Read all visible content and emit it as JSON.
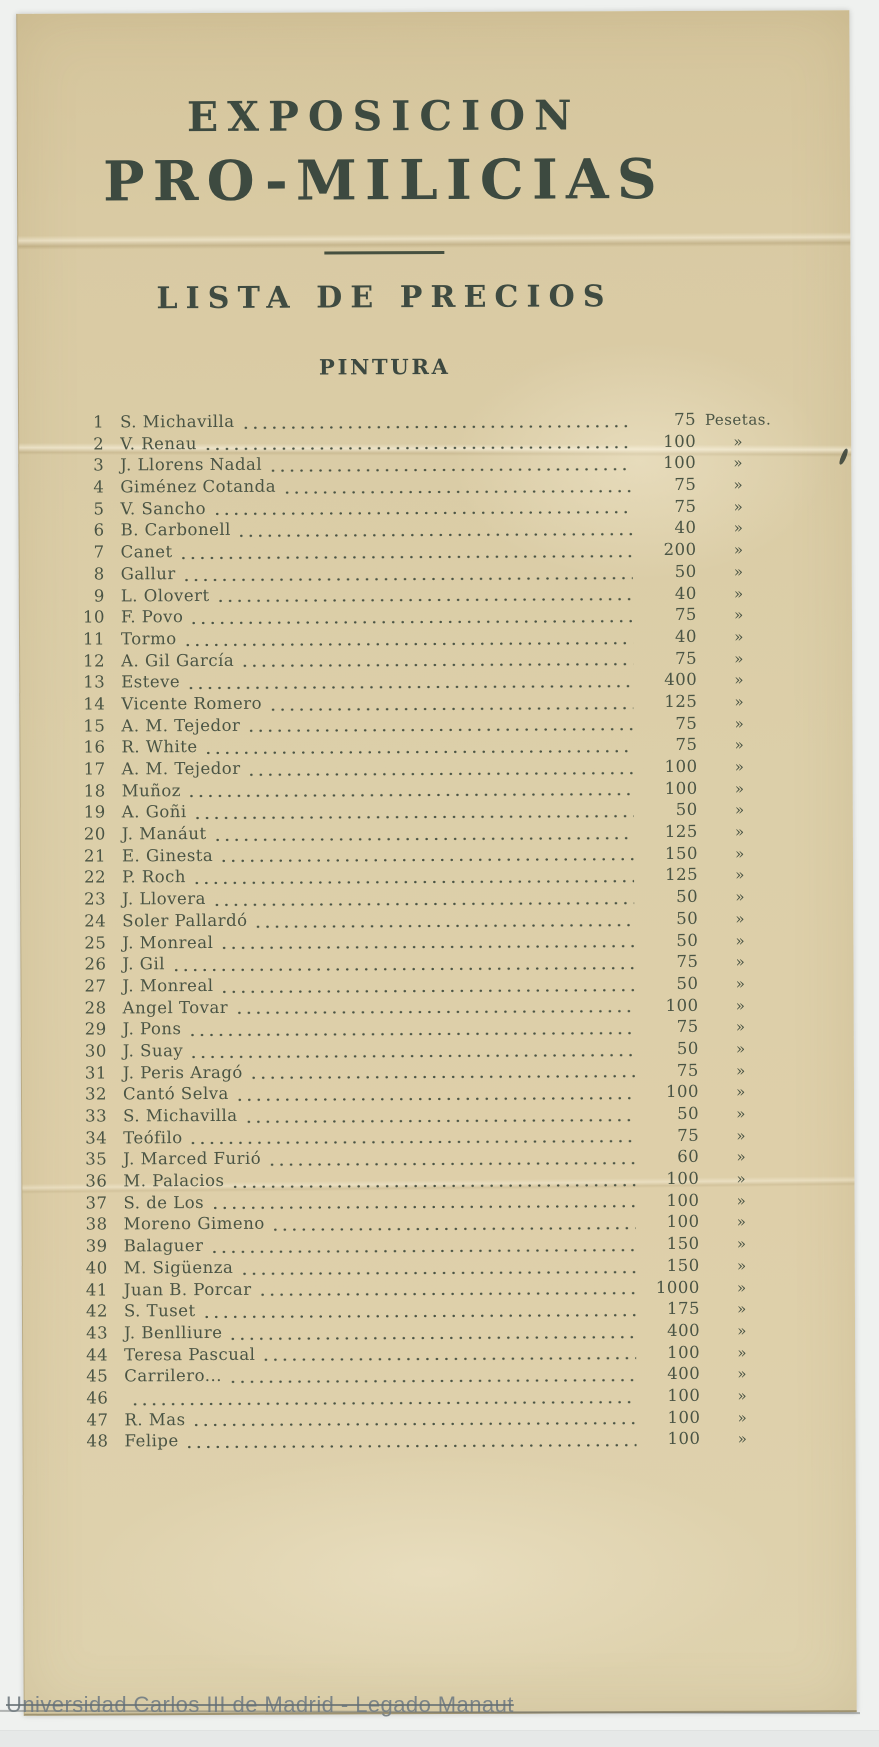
{
  "document": {
    "title_line1": "EXPOSICION",
    "title_line2": "PRO-MILICIAS",
    "subtitle": "LISTA DE PRECIOS",
    "section": "PINTURA",
    "items": [
      {
        "num": 1,
        "name": "S. Michavilla",
        "price": 75,
        "unit": "Pesetas."
      },
      {
        "num": 2,
        "name": "V. Renau",
        "price": 100,
        "unit": "»"
      },
      {
        "num": 3,
        "name": "J. Llorens Nadal",
        "price": 100,
        "unit": "»"
      },
      {
        "num": 4,
        "name": "Giménez Cotanda",
        "price": 75,
        "unit": "»"
      },
      {
        "num": 5,
        "name": "V. Sancho",
        "price": 75,
        "unit": "»"
      },
      {
        "num": 6,
        "name": "B. Carbonell",
        "price": 40,
        "unit": "»"
      },
      {
        "num": 7,
        "name": "Canet",
        "price": 200,
        "unit": "»"
      },
      {
        "num": 8,
        "name": "Gallur",
        "price": 50,
        "unit": "»"
      },
      {
        "num": 9,
        "name": "L. Olovert",
        "price": 40,
        "unit": "»"
      },
      {
        "num": 10,
        "name": "F. Povo",
        "price": 75,
        "unit": "»"
      },
      {
        "num": 11,
        "name": "Tormo",
        "price": 40,
        "unit": "»"
      },
      {
        "num": 12,
        "name": "A. Gil García",
        "price": 75,
        "unit": "»"
      },
      {
        "num": 13,
        "name": "Esteve",
        "price": 400,
        "unit": "»"
      },
      {
        "num": 14,
        "name": "Vicente Romero",
        "price": 125,
        "unit": "»"
      },
      {
        "num": 15,
        "name": "A. M. Tejedor",
        "price": 75,
        "unit": "»"
      },
      {
        "num": 16,
        "name": "R. White",
        "price": 75,
        "unit": "»"
      },
      {
        "num": 17,
        "name": "A. M. Tejedor",
        "price": 100,
        "unit": "»"
      },
      {
        "num": 18,
        "name": "Muñoz",
        "price": 100,
        "unit": "»"
      },
      {
        "num": 19,
        "name": "A. Goñi",
        "price": 50,
        "unit": "»"
      },
      {
        "num": 20,
        "name": "J. Manáut",
        "price": 125,
        "unit": "»"
      },
      {
        "num": 21,
        "name": "E. Ginesta",
        "price": 150,
        "unit": "»"
      },
      {
        "num": 22,
        "name": "P. Roch",
        "price": 125,
        "unit": "»"
      },
      {
        "num": 23,
        "name": "J. Llovera",
        "price": 50,
        "unit": "»"
      },
      {
        "num": 24,
        "name": "Soler Pallardó",
        "price": 50,
        "unit": "»"
      },
      {
        "num": 25,
        "name": "J. Monreal",
        "price": 50,
        "unit": "»"
      },
      {
        "num": 26,
        "name": "J. Gil",
        "price": 75,
        "unit": "»"
      },
      {
        "num": 27,
        "name": "J. Monreal",
        "price": 50,
        "unit": "»"
      },
      {
        "num": 28,
        "name": "Angel Tovar",
        "price": 100,
        "unit": "»"
      },
      {
        "num": 29,
        "name": "J. Pons",
        "price": 75,
        "unit": "»"
      },
      {
        "num": 30,
        "name": "J. Suay",
        "price": 50,
        "unit": "»"
      },
      {
        "num": 31,
        "name": "J. Peris Aragó",
        "price": 75,
        "unit": "»"
      },
      {
        "num": 32,
        "name": "Cantó Selva",
        "price": 100,
        "unit": "»"
      },
      {
        "num": 33,
        "name": "S. Michavilla",
        "price": 50,
        "unit": "»"
      },
      {
        "num": 34,
        "name": "Teófilo",
        "price": 75,
        "unit": "»"
      },
      {
        "num": 35,
        "name": "J. Marced Furió",
        "price": 60,
        "unit": "»"
      },
      {
        "num": 36,
        "name": "M. Palacios",
        "price": 100,
        "unit": "»"
      },
      {
        "num": 37,
        "name": "S. de Los",
        "price": 100,
        "unit": "»"
      },
      {
        "num": 38,
        "name": "Moreno Gimeno",
        "price": 100,
        "unit": "»"
      },
      {
        "num": 39,
        "name": "Balaguer",
        "price": 150,
        "unit": "»"
      },
      {
        "num": 40,
        "name": "M. Sigüenza",
        "price": 150,
        "unit": "»"
      },
      {
        "num": 41,
        "name": "Juan B. Porcar",
        "price": 1000,
        "unit": "»"
      },
      {
        "num": 42,
        "name": "S. Tuset",
        "price": 175,
        "unit": "»"
      },
      {
        "num": 43,
        "name": "J. Benlliure",
        "price": 400,
        "unit": "»"
      },
      {
        "num": 44,
        "name": "Teresa Pascual",
        "price": 100,
        "unit": "»"
      },
      {
        "num": 45,
        "name": "Carrilero...",
        "price": 400,
        "unit": "»"
      },
      {
        "num": 46,
        "name": "",
        "price": 100,
        "unit": "»"
      },
      {
        "num": 47,
        "name": "R. Mas",
        "price": 100,
        "unit": "»"
      },
      {
        "num": 48,
        "name": "Felipe",
        "price": 100,
        "unit": "»"
      }
    ],
    "watermark": "Universidad Carlos III de Madrid - Legado Manaut"
  },
  "colors": {
    "paper": "#dacca5",
    "ink": "#46503f",
    "background": "#eff1ef",
    "watermark_gray": "#768085"
  }
}
